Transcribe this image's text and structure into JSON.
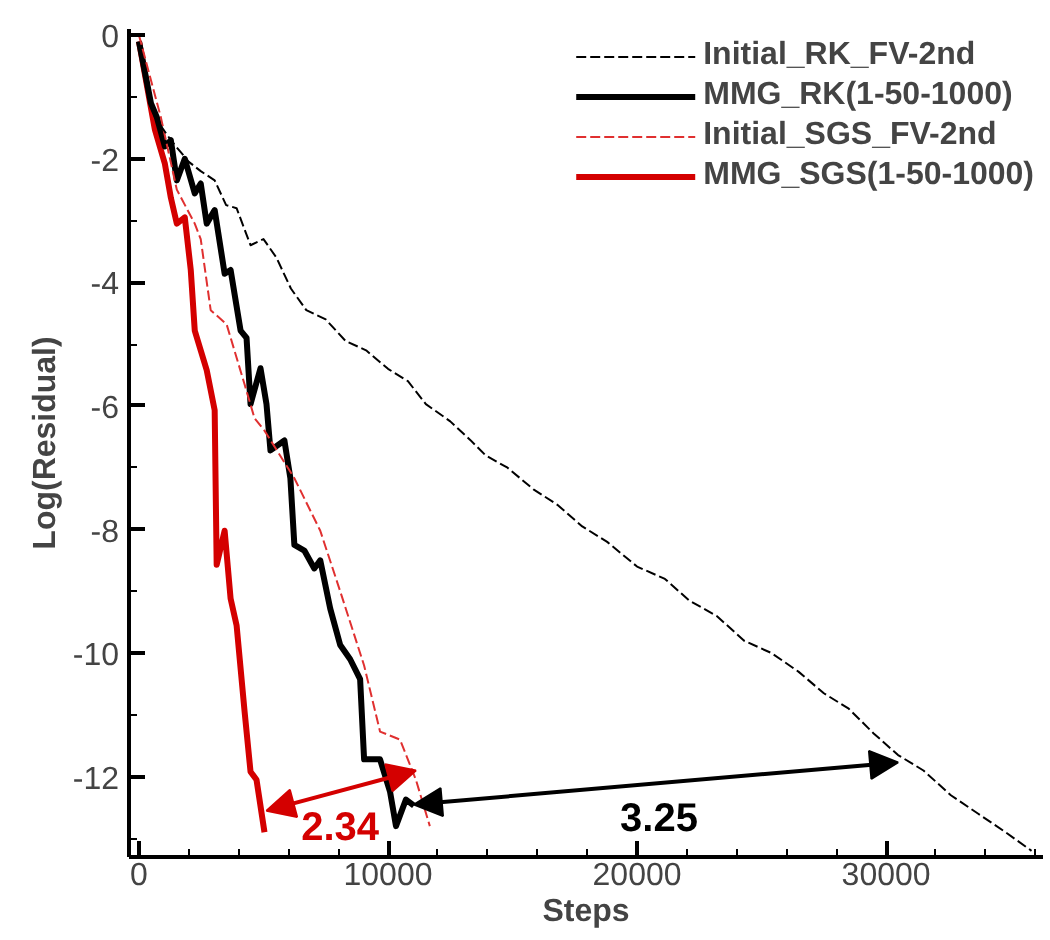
{
  "chart_data": {
    "type": "line",
    "xlabel": "Steps",
    "ylabel": "Log(Residual)",
    "xlim": [
      -400,
      36300
    ],
    "ylim": [
      -13.3,
      0.1
    ],
    "xticks": [
      0,
      10000,
      20000,
      30000
    ],
    "yticks": [
      -12,
      -10,
      -8,
      -6,
      -4,
      -2,
      0
    ],
    "grid": false,
    "legend": "top right",
    "marker": "none",
    "series": [
      {
        "name": "Initial_RK_FV-2nd",
        "color": "#000000",
        "line_style": "dashed",
        "x": [
          0,
          640,
          1280,
          2000,
          2480,
          3040,
          3500,
          3920,
          4480,
          5000,
          5520,
          6100,
          6720,
          7500,
          8300,
          9120,
          10000,
          10800,
          11520,
          12500,
          13300,
          13920,
          14800,
          15840,
          16800,
          17800,
          18800,
          20000,
          21120,
          22100,
          23200,
          24300,
          25400,
          26480,
          27500,
          28500,
          29500,
          30480,
          31500,
          32600,
          33700,
          34800,
          35840
        ],
        "values": [
          -0.15,
          -1.33,
          -1.7,
          -2.05,
          -2.2,
          -2.35,
          -2.75,
          -2.8,
          -3.4,
          -3.3,
          -3.6,
          -4.1,
          -4.45,
          -4.6,
          -4.95,
          -5.1,
          -5.4,
          -5.6,
          -5.97,
          -6.25,
          -6.55,
          -6.8,
          -7.0,
          -7.35,
          -7.6,
          -7.95,
          -8.2,
          -8.6,
          -8.8,
          -9.15,
          -9.4,
          -9.8,
          -10.0,
          -10.3,
          -10.65,
          -10.9,
          -11.3,
          -11.65,
          -11.9,
          -12.3,
          -12.6,
          -12.9,
          -13.2
        ]
      },
      {
        "name": "MMG_RK(1-50-1000)",
        "color": "#000000",
        "line_style": "solid",
        "x": [
          0,
          480,
          720,
          1040,
          1280,
          1520,
          1840,
          2240,
          2480,
          2720,
          3040,
          3440,
          3680,
          4080,
          4320,
          4480,
          4880,
          5120,
          5280,
          5840,
          6080,
          6240,
          6640,
          7040,
          7280,
          7680,
          8080,
          8480,
          8880,
          9040,
          9680,
          10080,
          10320,
          10720,
          11040
        ],
        "values": [
          -0.1,
          -1.1,
          -1.33,
          -1.8,
          -1.7,
          -2.35,
          -2.0,
          -2.56,
          -2.4,
          -3.05,
          -2.83,
          -3.86,
          -3.8,
          -4.78,
          -4.9,
          -5.97,
          -5.39,
          -5.97,
          -6.72,
          -6.56,
          -7.17,
          -8.25,
          -8.34,
          -8.63,
          -8.5,
          -9.28,
          -9.87,
          -10.1,
          -10.42,
          -11.72,
          -11.72,
          -12.24,
          -12.8,
          -12.37,
          -12.47
        ]
      },
      {
        "name": "Initial_SGS_FV-2nd",
        "color": "#e03030",
        "line_style": "dashed",
        "x": [
          0,
          880,
          1520,
          2240,
          2480,
          2880,
          3520,
          4240,
          4640,
          5040,
          6240,
          7280,
          8080,
          9040,
          9680,
          10480,
          11120,
          11680
        ],
        "values": [
          0,
          -1.33,
          -2.5,
          -3.05,
          -3.3,
          -4.45,
          -4.68,
          -5.65,
          -6.2,
          -6.4,
          -7.17,
          -8.02,
          -9.0,
          -10.2,
          -11.27,
          -11.4,
          -12.05,
          -12.8
        ]
      },
      {
        "name": "MMG_SGS(1-50-1000)",
        "color": "#d40000",
        "line_style": "solid",
        "x": [
          0,
          640,
          1040,
          1280,
          1520,
          1840,
          2080,
          2240,
          2480,
          2720,
          3040,
          3120,
          3440,
          3680,
          3920,
          4240,
          4480,
          4720,
          5040
        ],
        "values": [
          -0.1,
          -1.53,
          -2.08,
          -2.63,
          -3.05,
          -2.95,
          -3.8,
          -4.78,
          -5.1,
          -5.42,
          -6.07,
          -8.57,
          -8.02,
          -9.12,
          -9.55,
          -10.94,
          -11.92,
          -12.05,
          -12.9
        ]
      }
    ],
    "annotations": [
      "2.34",
      "3.25"
    ]
  }
}
